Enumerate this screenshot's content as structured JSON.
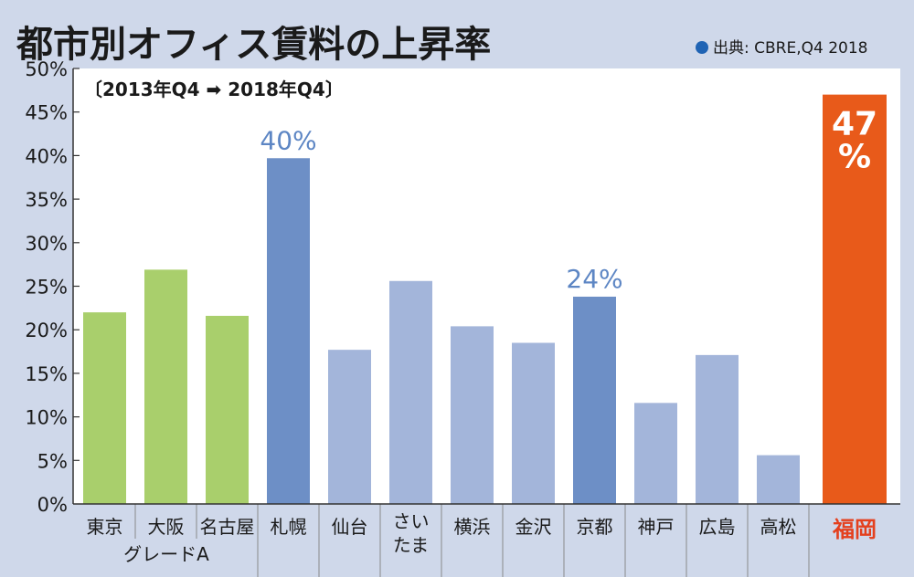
{
  "title": "都市別オフィス賃料の上昇率",
  "source": "出典: CBRE,Q4 2018",
  "subtitle": "〔2013年Q4 ➡ 2018年Q4〕",
  "group_label": "グレードA",
  "colors": {
    "background": "#cfd8ea",
    "plot": "#ffffff",
    "grade_a": "#a9cf6c",
    "highlight_blue": "#6d8fc6",
    "light_blue": "#a3b5da",
    "fukuoka": "#e85a1a",
    "fukuoka_label": "#e4401e"
  },
  "chart_data": {
    "type": "bar",
    "title": "都市別オフィス賃料の上昇率",
    "ylim": [
      0,
      50
    ],
    "yticks": [
      "0%",
      "5%",
      "10%",
      "15%",
      "20%",
      "25%",
      "30%",
      "35%",
      "40%",
      "45%",
      "50%"
    ],
    "grid": false,
    "categories": [
      "東京",
      "大阪",
      "名古屋",
      "札幌",
      "仙台",
      "さいたま",
      "横浜",
      "金沢",
      "京都",
      "神戸",
      "広島",
      "高松",
      "福岡"
    ],
    "values": [
      22,
      26.9,
      21.6,
      39.7,
      17.7,
      25.6,
      20.4,
      18.5,
      23.8,
      11.6,
      17.1,
      5.6,
      47
    ],
    "data_labels": {
      "札幌": "40%",
      "京都": "24%",
      "福岡": "47%"
    }
  }
}
